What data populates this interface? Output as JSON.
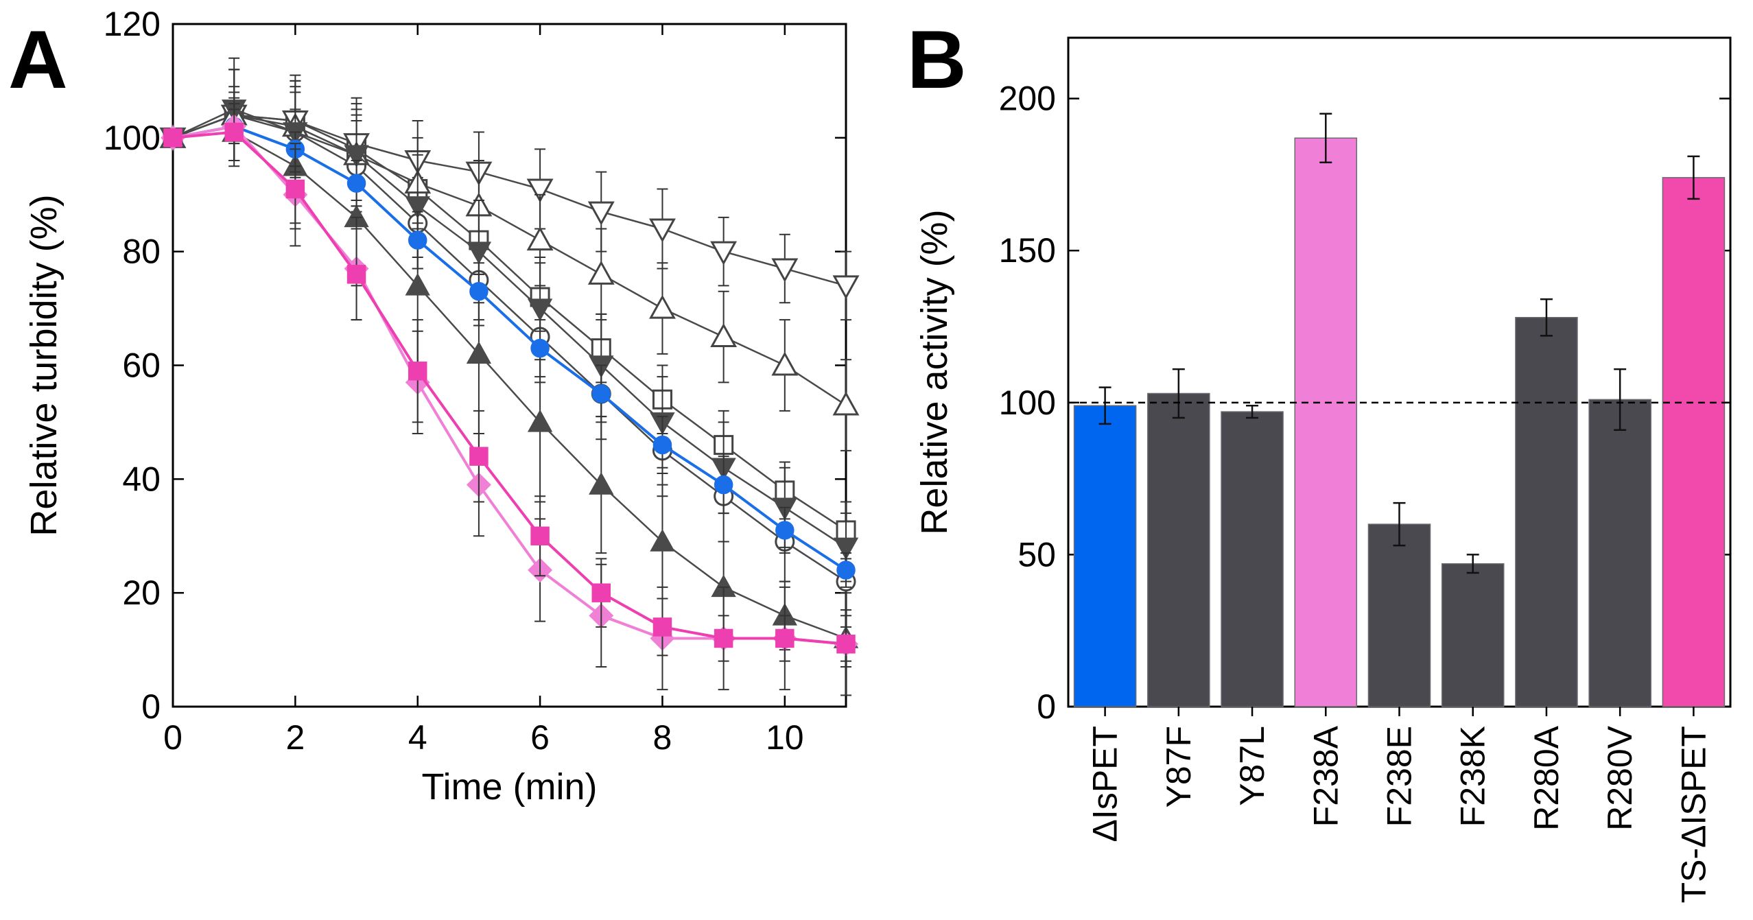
{
  "panels": {
    "a": {
      "letter": "A"
    },
    "b": {
      "letter": "B"
    }
  },
  "chart_data": [
    {
      "type": "line",
      "panel": "A",
      "title": "",
      "xlabel": "Time (min)",
      "ylabel": "Relative turbidity (%)",
      "xlim": [
        0,
        11
      ],
      "ylim": [
        0,
        120
      ],
      "xticks": [
        0,
        2,
        4,
        6,
        8,
        10
      ],
      "yticks": [
        0,
        20,
        40,
        60,
        80,
        100,
        120
      ],
      "x": [
        0,
        1,
        2,
        3,
        4,
        5,
        6,
        7,
        8,
        9,
        10,
        11
      ],
      "series": [
        {
          "name": "ΔIsPET",
          "color": "#1a6fe8",
          "marker": "circle-filled",
          "values": [
            100,
            102,
            98,
            92,
            82,
            73,
            63,
            55,
            46,
            39,
            31,
            24
          ],
          "err": [
            1.5,
            3,
            3,
            4,
            5,
            5,
            5,
            5,
            5,
            5,
            4,
            3
          ]
        },
        {
          "name": "Y87F",
          "color": "#555555",
          "marker": "circle-open",
          "values": [
            100,
            104,
            101,
            95,
            85,
            75,
            65,
            55,
            45,
            37,
            29,
            22
          ],
          "err": [
            1.5,
            8,
            8,
            8,
            8,
            8,
            8,
            8,
            8,
            8,
            7,
            6
          ]
        },
        {
          "name": "Y87L",
          "color": "#555555",
          "marker": "square-open",
          "values": [
            100,
            104,
            103,
            98,
            91,
            82,
            72,
            63,
            54,
            46,
            38,
            31
          ],
          "err": [
            1.5,
            5,
            5,
            6,
            6,
            6,
            6,
            6,
            6,
            6,
            5,
            5
          ]
        },
        {
          "name": "F238A",
          "color": "#f07fd6",
          "marker": "diamond-filled",
          "values": [
            100,
            102,
            90,
            77,
            57,
            39,
            24,
            16,
            12,
            12,
            12,
            11
          ],
          "err": [
            1.5,
            6,
            9,
            9,
            9,
            9,
            9,
            9,
            9,
            9,
            9,
            9
          ]
        },
        {
          "name": "F238E",
          "color": "#555555",
          "marker": "triangle-filled",
          "values": [
            100,
            101,
            95,
            86,
            74,
            62,
            50,
            39,
            29,
            21,
            16,
            12
          ],
          "err": [
            1.5,
            6,
            10,
            12,
            14,
            14,
            14,
            12,
            10,
            8,
            6,
            5
          ]
        },
        {
          "name": "F238K",
          "color": "#555555",
          "marker": "tri-down-open",
          "values": [
            100,
            104,
            103,
            99,
            96,
            94,
            91,
            87,
            84,
            80,
            77,
            74
          ],
          "err": [
            1.5,
            8,
            8,
            8,
            7,
            7,
            7,
            7,
            7,
            6,
            6,
            6
          ]
        },
        {
          "name": "R280A",
          "color": "#555555",
          "marker": "triangle-open",
          "values": [
            100,
            104,
            102,
            97,
            92,
            88,
            82,
            76,
            70,
            65,
            60,
            53
          ],
          "err": [
            1.5,
            8,
            8,
            8,
            8,
            8,
            8,
            8,
            8,
            8,
            8,
            8
          ]
        },
        {
          "name": "R280V",
          "color": "#555555",
          "marker": "tri-down-filled",
          "values": [
            100,
            105,
            101,
            97,
            88,
            80,
            70,
            60,
            50,
            42,
            35,
            28
          ],
          "err": [
            1.5,
            9,
            9,
            9,
            9,
            9,
            9,
            9,
            8,
            8,
            7,
            6
          ]
        },
        {
          "name": "TS-ΔIsPET",
          "color": "#ee3fb0",
          "marker": "square-filled",
          "values": [
            100,
            101,
            91,
            76,
            59,
            44,
            30,
            20,
            14,
            12,
            12,
            11
          ],
          "err": [
            1.5,
            5,
            7,
            8,
            9,
            8,
            7,
            6,
            5,
            4,
            4,
            3
          ]
        }
      ]
    },
    {
      "type": "bar",
      "panel": "B",
      "title": "",
      "xlabel": "",
      "ylabel": "Relative activity (%)",
      "ylim": [
        0,
        220
      ],
      "yticks": [
        0,
        50,
        100,
        150,
        200
      ],
      "reference_line": 100,
      "categories": [
        "ΔIsPET",
        "Y87F",
        "Y87L",
        "F238A",
        "F238E",
        "F238K",
        "R280A",
        "R280V",
        "TS-ΔISPET"
      ],
      "values": [
        99,
        103,
        97,
        187,
        60,
        47,
        128,
        101,
        174
      ],
      "errors": [
        6,
        8,
        2,
        8,
        7,
        3,
        6,
        10,
        7
      ],
      "colors": [
        "#0066f0",
        "#4a494f",
        "#4a494f",
        "#f07fd8",
        "#4a494f",
        "#4a494f",
        "#4a494f",
        "#4a494f",
        "#f24aac"
      ]
    }
  ]
}
